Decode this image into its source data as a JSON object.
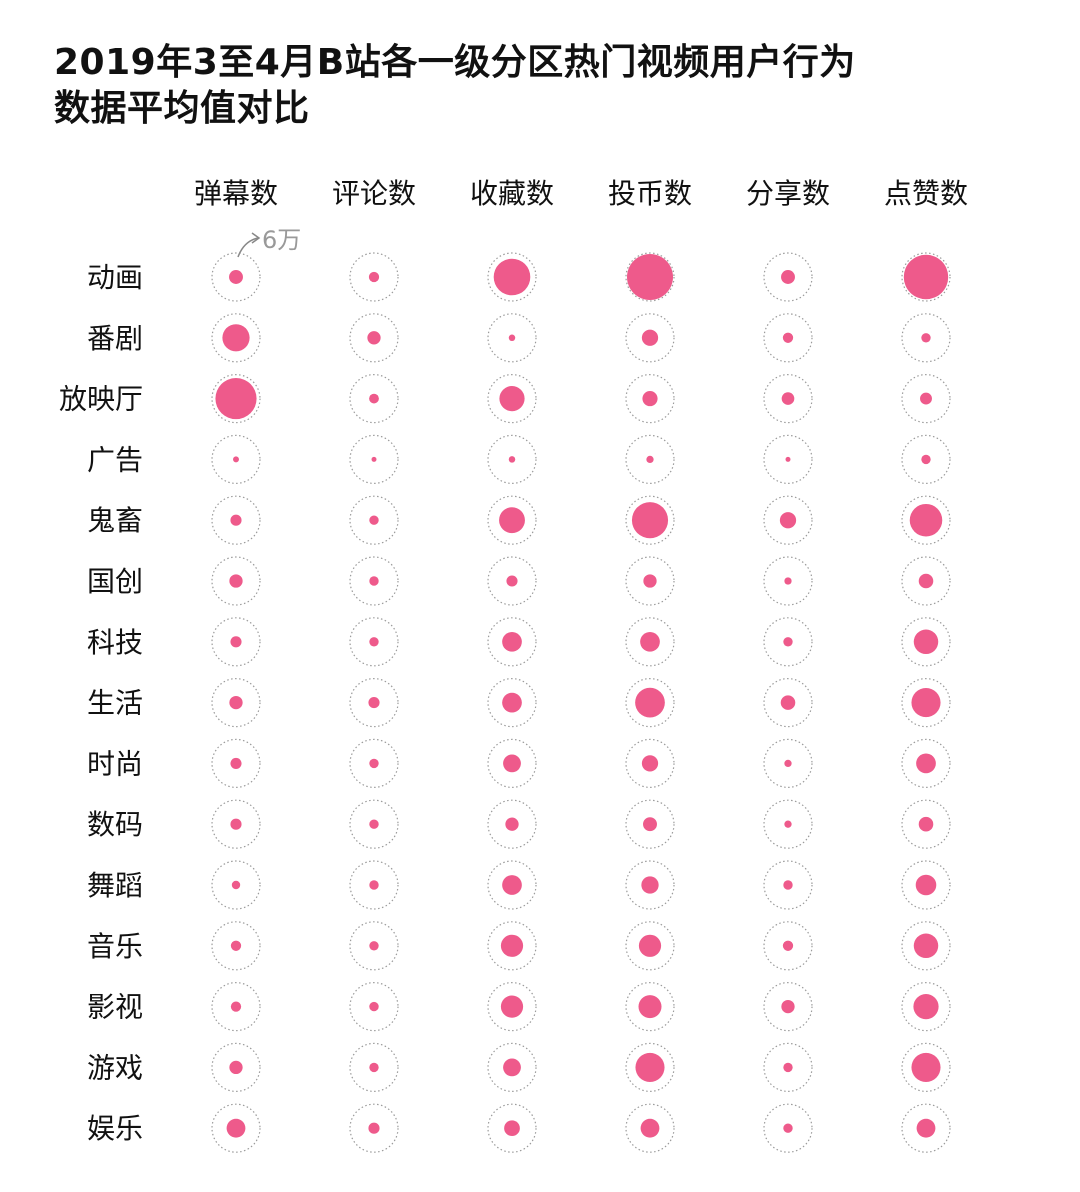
{
  "title": {
    "line1": "2019年3至4月B站各一级分区热门视频用户行为",
    "line2": "数据平均值对比"
  },
  "chart_data": {
    "type": "bubble-matrix",
    "title": "2019年3至4月B站各一级分区热门视频用户行为数据平均值对比",
    "reference_label": "6万",
    "reference_value": 60000,
    "columns": [
      "弹幕数",
      "评论数",
      "收藏数",
      "投币数",
      "分享数",
      "点赞数"
    ],
    "rows": [
      "动画",
      "番剧",
      "放映厅",
      "广告",
      "鬼畜",
      "国创",
      "科技",
      "生活",
      "时尚",
      "数码",
      "舞蹈",
      "音乐",
      "影视",
      "游戏",
      "娱乐"
    ],
    "values": [
      [
        5500,
        3000,
        38000,
        60000,
        5500,
        56000
      ],
      [
        21000,
        5000,
        1200,
        7500,
        3000,
        2500
      ],
      [
        48000,
        2700,
        18000,
        6500,
        4500,
        4000
      ],
      [
        1000,
        600,
        1200,
        1500,
        600,
        2500
      ],
      [
        3500,
        2500,
        19000,
        37000,
        7500,
        30000
      ],
      [
        5000,
        2500,
        3500,
        5000,
        1500,
        6000
      ],
      [
        3500,
        2500,
        11000,
        11000,
        2500,
        17000
      ],
      [
        5000,
        3500,
        11000,
        25000,
        6000,
        24000
      ],
      [
        3500,
        2500,
        9000,
        7500,
        1500,
        11000
      ],
      [
        3500,
        2500,
        5000,
        5500,
        1500,
        6000
      ],
      [
        2000,
        2500,
        11000,
        8500,
        2500,
        12000
      ],
      [
        3000,
        2500,
        14000,
        14000,
        3000,
        17000
      ],
      [
        3000,
        2500,
        14000,
        15000,
        5000,
        18000
      ],
      [
        5000,
        2500,
        9000,
        24000,
        2500,
        24000
      ],
      [
        10000,
        3500,
        7000,
        10000,
        2500,
        10000
      ]
    ]
  },
  "colors": {
    "bubble": "#ee5a8b",
    "ring": "#9a9a9a",
    "reference_text": "#999999"
  }
}
